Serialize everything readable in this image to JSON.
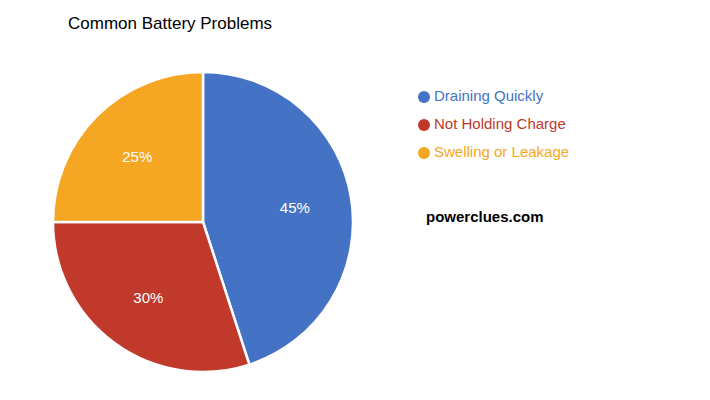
{
  "chart_data": {
    "type": "pie",
    "title": "Common Battery Problems",
    "categories": [
      "Draining Quickly",
      "Not Holding Charge",
      "Swelling or Leakage"
    ],
    "values": [
      45,
      30,
      25
    ],
    "colors": [
      "#4472C4",
      "#C0392B",
      "#F5A623"
    ],
    "data_labels": true,
    "value_labels": [
      "45%",
      "30%",
      "25%"
    ],
    "legend": "right",
    "annotations": [
      "powerclues.com"
    ]
  }
}
